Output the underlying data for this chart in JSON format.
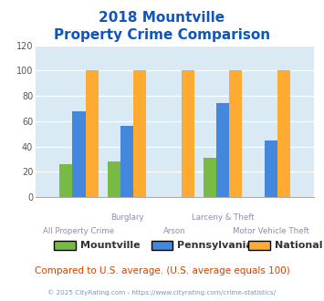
{
  "title_line1": "2018 Mountville",
  "title_line2": "Property Crime Comparison",
  "categories": [
    "All Property Crime",
    "Burglary",
    "Arson",
    "Larceny & Theft",
    "Motor Vehicle Theft"
  ],
  "series": {
    "Mountville": [
      26,
      28,
      0,
      31,
      0
    ],
    "Pennsylvania": [
      68,
      56,
      0,
      74,
      45
    ],
    "National": [
      100,
      100,
      100,
      100,
      100
    ]
  },
  "colors": {
    "Mountville": "#77bb44",
    "Pennsylvania": "#4488dd",
    "National": "#ffaa33"
  },
  "ylim": [
    0,
    120
  ],
  "yticks": [
    0,
    20,
    40,
    60,
    80,
    100,
    120
  ],
  "plot_bg_color": "#daeaf5",
  "title_color": "#1155bb",
  "xlabel_color": "#9988aa",
  "footer_text": "Compared to U.S. average. (U.S. average equals 100)",
  "copyright_text": "© 2025 CityRating.com - https://www.cityrating.com/crime-statistics/",
  "footer_color": "#cc4400",
  "copyright_color": "#7799bb",
  "bar_width": 0.22,
  "group_width": 0.82
}
